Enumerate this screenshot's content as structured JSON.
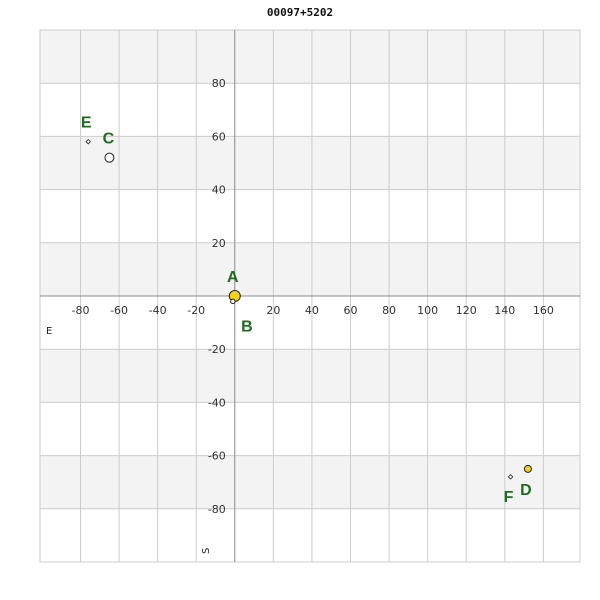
{
  "chart_data": {
    "type": "scatter",
    "title": "00097+5202",
    "xlabel": "E",
    "ylabel": "S",
    "xlim": [
      -101,
      179
    ],
    "ylim": [
      -100,
      100
    ],
    "x_ticks": [
      -80,
      -60,
      -40,
      -20,
      20,
      40,
      60,
      80,
      100,
      120,
      140,
      160
    ],
    "y_ticks": [
      80,
      60,
      40,
      20,
      -20,
      -40,
      -60,
      -80
    ],
    "grid": true,
    "colors": {
      "yellow": "#f5d31c",
      "white": "#ffffff",
      "stroke": "#222222",
      "label": "#1f6b1f",
      "band": "#f3f3f3",
      "grid": "#cccccc"
    },
    "points": [
      {
        "label": "A",
        "x": 0,
        "y": 0,
        "marker": "circle",
        "size": "large",
        "fill": "yellow",
        "label_dx": -2,
        "label_dy": -14
      },
      {
        "label": "B",
        "x": -1,
        "y": -2,
        "marker": "circle",
        "size": "tiny",
        "fill": "white",
        "label_dx": 14,
        "label_dy": 30
      },
      {
        "label": "C",
        "x": -65,
        "y": 52,
        "marker": "circle",
        "size": "medium",
        "fill": "white",
        "label_dx": -1,
        "label_dy": -14
      },
      {
        "label": "D",
        "x": 152,
        "y": -65,
        "marker": "circle",
        "size": "small",
        "fill": "yellow",
        "label_dx": -2,
        "label_dy": 26
      },
      {
        "label": "E",
        "x": -76,
        "y": 58,
        "marker": "diamond",
        "size": "tiny",
        "fill": "white",
        "label_dx": -2,
        "label_dy": -14
      },
      {
        "label": "F",
        "x": 143,
        "y": -68,
        "marker": "diamond",
        "size": "tiny",
        "fill": "white",
        "label_dx": -2,
        "label_dy": 25
      }
    ]
  }
}
